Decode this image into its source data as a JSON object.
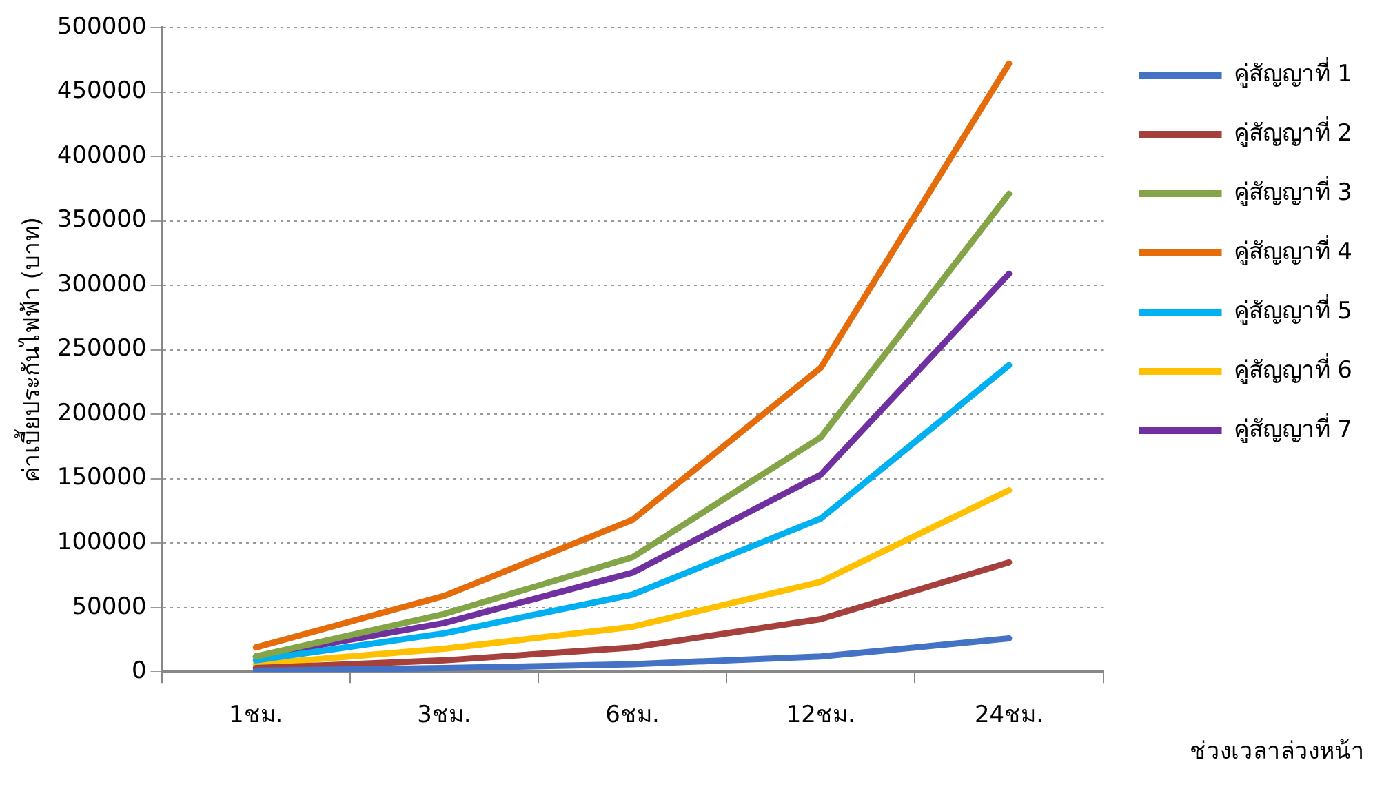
{
  "chart_data": {
    "type": "line",
    "xlabel": "ช่วงเวลาล่วงหน้า",
    "ylabel": "ค่าเบี้ยประกันไฟฟ้า (บาท)",
    "categories": [
      "1ชม.",
      "3ชม.",
      "6ชม.",
      "12ชม.",
      "24ชม."
    ],
    "series": [
      {
        "name": "คู่สัญญาที่ 1",
        "color": "#4472c4",
        "values": [
          1000,
          3000,
          6000,
          12000,
          26000
        ]
      },
      {
        "name": "คู่สัญญาที่ 2",
        "color": "#a5403c",
        "values": [
          3000,
          9000,
          19000,
          41000,
          85000
        ]
      },
      {
        "name": "คู่สัญญาที่ 3",
        "color": "#83a447",
        "values": [
          12000,
          45000,
          89000,
          182000,
          371000
        ]
      },
      {
        "name": "คู่สัญญาที่ 4",
        "color": "#e46c0a",
        "values": [
          19000,
          59000,
          118000,
          236000,
          472000
        ]
      },
      {
        "name": "คู่สัญญาที่ 5",
        "color": "#00b0f0",
        "values": [
          9000,
          30000,
          60000,
          119000,
          238000
        ]
      },
      {
        "name": "คู่สัญญาที่ 6",
        "color": "#ffc000",
        "values": [
          6000,
          18000,
          35000,
          70000,
          141000
        ]
      },
      {
        "name": "คู่สัญญาที่ 7",
        "color": "#7030a0",
        "values": [
          12000,
          38000,
          77000,
          153000,
          309000
        ]
      }
    ],
    "ylim": [
      0,
      500000
    ],
    "yticks": [
      0,
      50000,
      100000,
      150000,
      200000,
      250000,
      300000,
      350000,
      400000,
      450000,
      500000
    ],
    "grid": "y",
    "legend": "right",
    "marker": "none",
    "line_style": "solid"
  }
}
